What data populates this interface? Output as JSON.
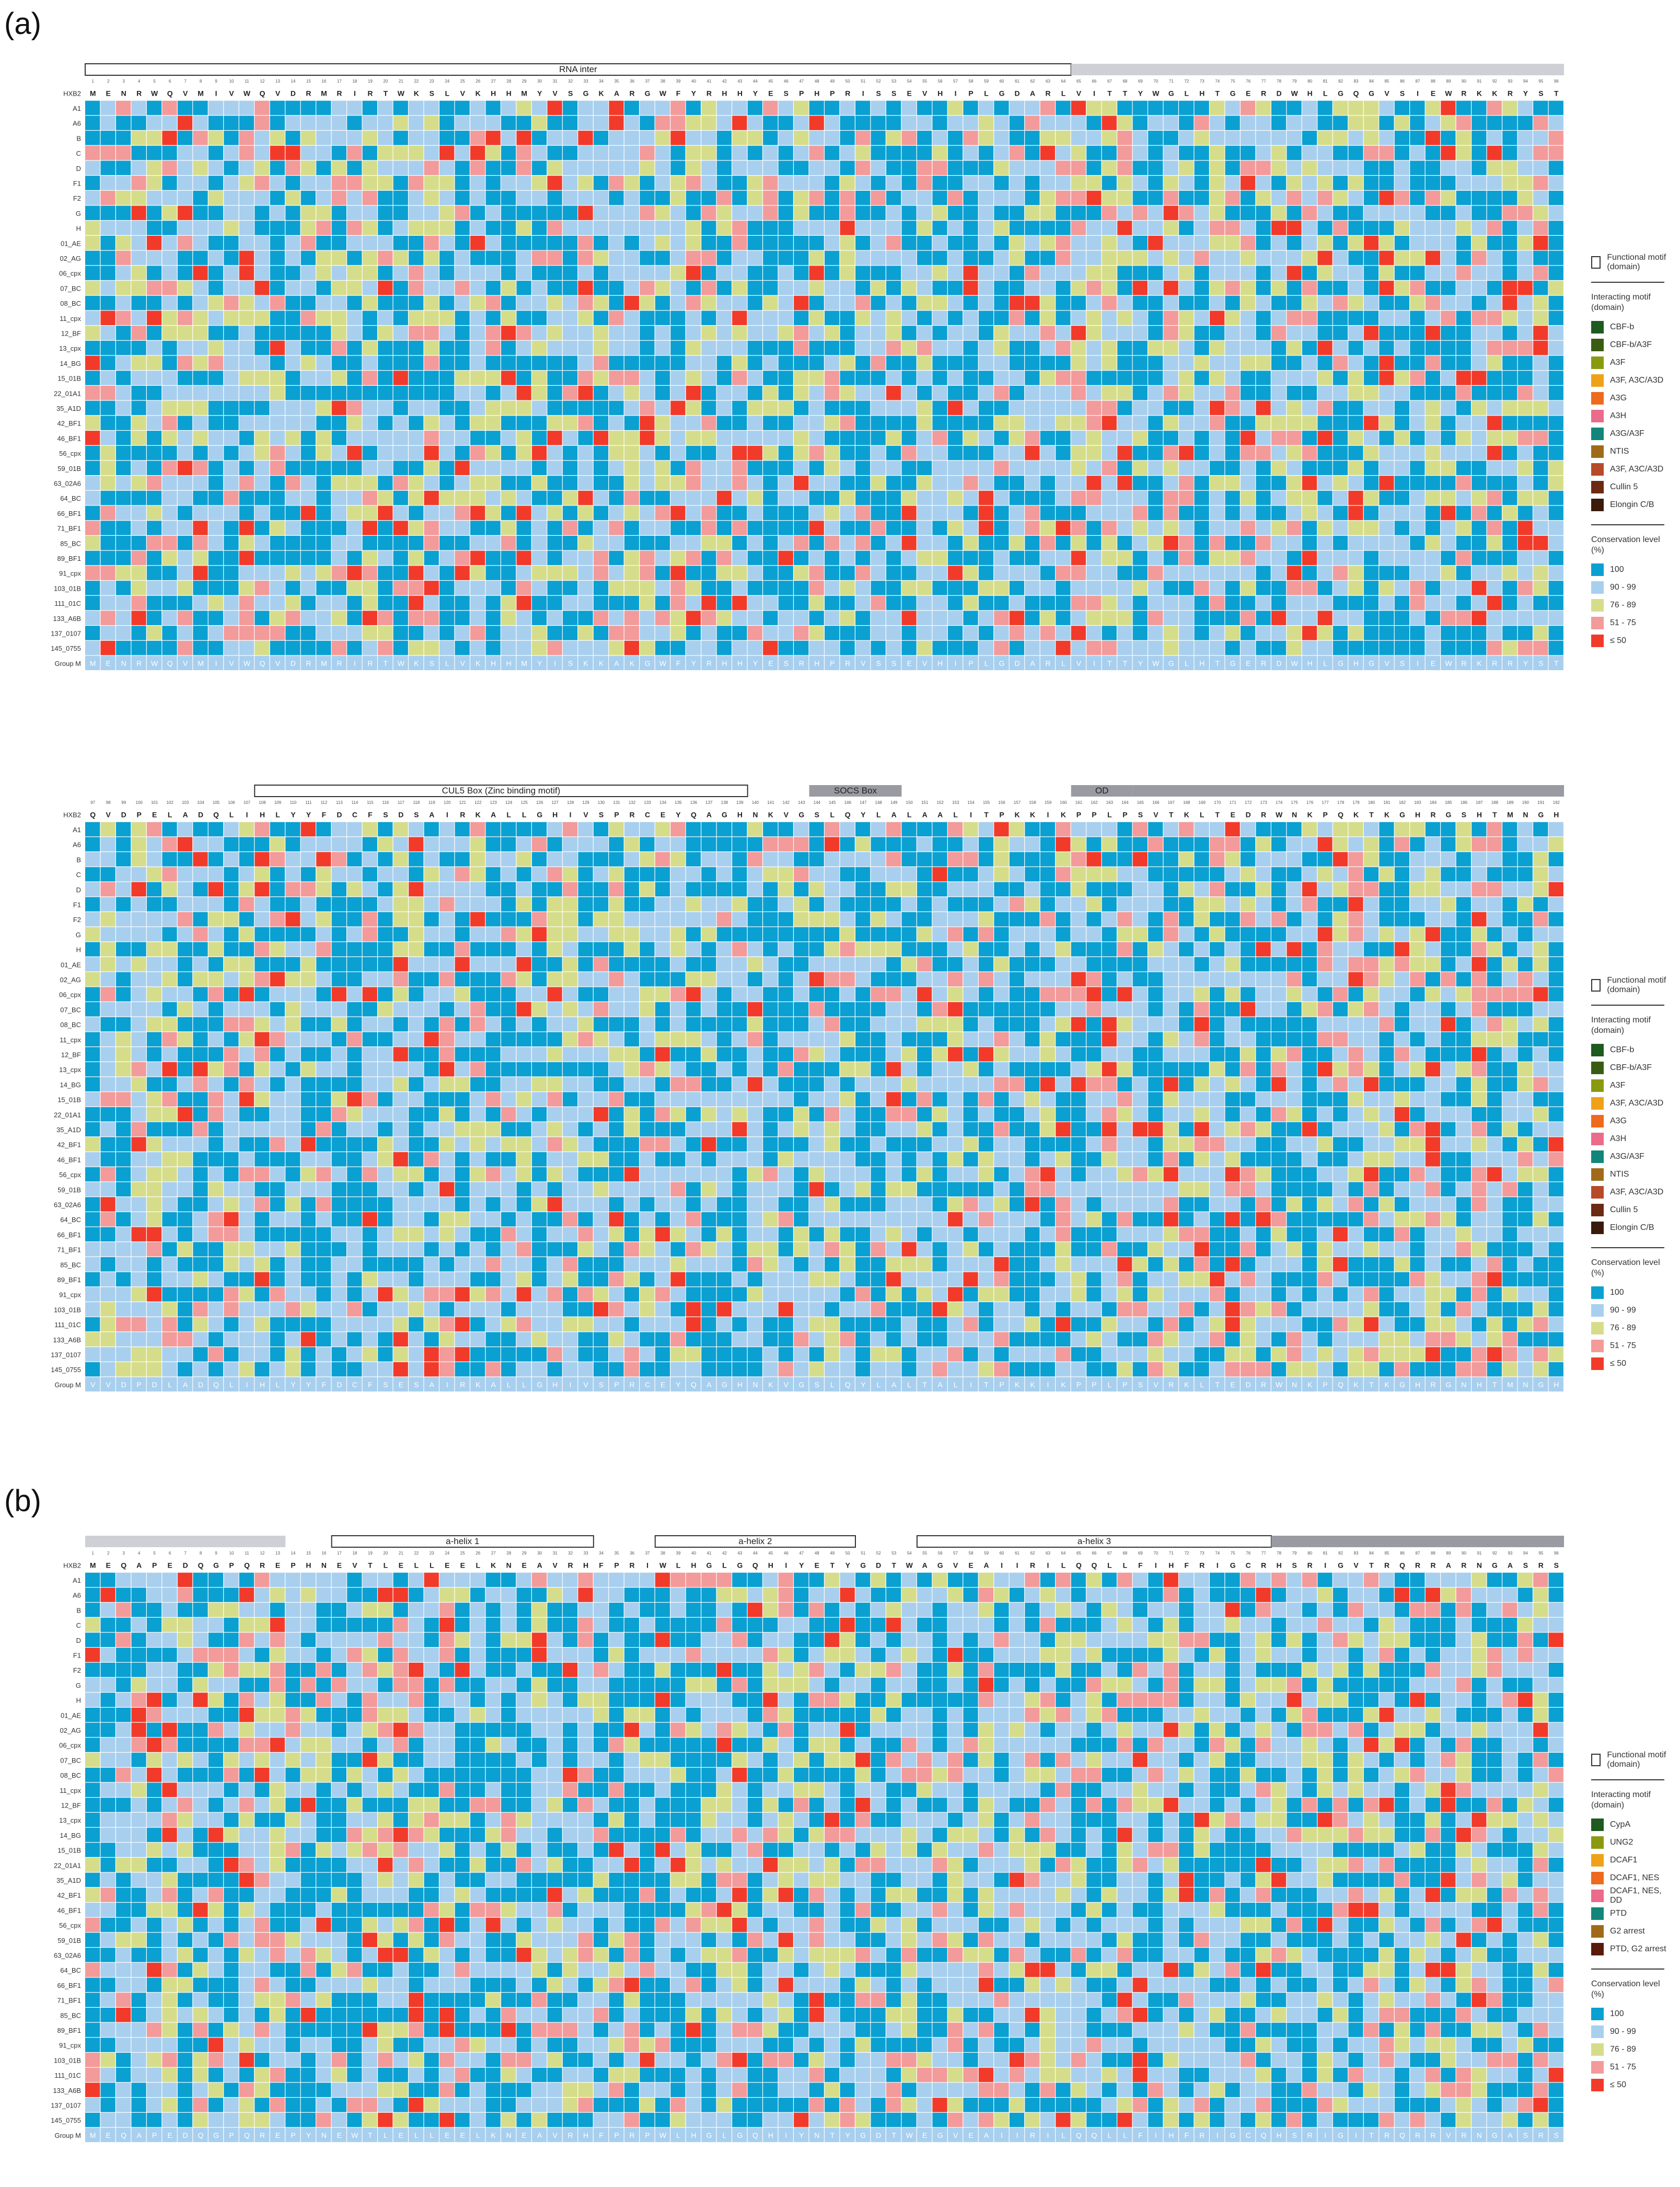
{
  "panels": [
    {
      "label": "(a)"
    },
    {
      "label": "(b)"
    }
  ],
  "colors": {
    "c100": "#0aa0d2",
    "c90": "#a8cfee",
    "c76": "#d6dd8a",
    "c51": "#f39a9a",
    "c50": "#f23a2a",
    "header_bar": "#cfcfd6",
    "header_bar_dark": "#9a9ba2"
  },
  "rows": [
    "HXB2",
    "A1",
    "A6",
    "B",
    "C",
    "D",
    "F1",
    "F2",
    "G",
    "H",
    "01_AE",
    "02_AG",
    "06_cpx",
    "07_BC",
    "08_BC",
    "11_cpx",
    "12_BF",
    "13_cpx",
    "14_BG",
    "15_01B",
    "22_01A1",
    "35_A1D",
    "42_BF1",
    "46_BF1",
    "56_cpx",
    "59_01B",
    "63_02A6",
    "64_BC",
    "66_BF1",
    "71_BF1",
    "85_BC",
    "89_BF1",
    "91_cpx",
    "103_01B",
    "111_01C",
    "133_A6B",
    "137_0107",
    "145_0755",
    "Group M"
  ],
  "heatmaps": [
    {
      "id": "vif1",
      "start_num": 1,
      "hxb2": "MENRWQVMIVWQVDRMRIRTWKSLVKHHMYVSGKARGWFYRHHYESPHPRISSEVHIPLGDARLVITTYWGLHTGERDWHLGQGVSIEWRKKRYST",
      "group_m": "MENRWQVMIVWQVDRMRIRTWKSLVKHHMYISKKAKGWFYRHHYESRHPRVSSEVHIPLGDARLVITTYWGLHTGERDWHLGHGVSIEWRKRRYST",
      "regions": [
        {
          "name": "RNA inter",
          "start": 1,
          "end": 64,
          "style": "box"
        },
        {
          "name": "",
          "start": 65,
          "end": 96,
          "style": "light"
        }
      ]
    },
    {
      "id": "vif2",
      "start_num": 97,
      "hxb2": "QVDPELADQLIHLYYFDCFSDSAIRKALLGHIVSPRCEYQAGHNKVGSLQYLALAALITPKKIKPPLPSVTKLTEDRWNKPQKTKGHRGSHTMNGH",
      "group_m": "VVDPDLADQLIHLYYFDCFSESAIRKALLGHIVSPRCEYQAGHNKVGSLQYLALTALITPKKIKPPLPSVRKLTEDRWNKPQKTKGHRGNHTMNGH",
      "regions": [
        {
          "name": "CUL5 Box (Zinc binding motif)",
          "start": 108,
          "end": 139,
          "style": "box"
        },
        {
          "name": "SOCS Box",
          "start": 144,
          "end": 149,
          "style": "dark"
        },
        {
          "name": "OD",
          "start": 161,
          "end": 164,
          "style": "dark"
        },
        {
          "name": "",
          "start": 165,
          "end": 192,
          "style": "dark"
        }
      ]
    },
    {
      "id": "vpr",
      "start_num": 1,
      "hxb2": "MEQAPEDQGPQREPHNEVTLELLEELKNEAVRHFPRIWLHGLGQHIYETYGDTWAGVEAIIRILQQLLFIHFRIGCRHSRIGVTRQRRARNGASRS",
      "group_m": "MEQAPEDQGPQREPYNEWTLELLEELKNEAVRHFPRPWLHGLGQHIYNTYGDTWEGVEAIIRILQQLLFIHFRIGCQHSRIGITRQRRVRNGASRS",
      "regions": [
        {
          "name": "",
          "start": 1,
          "end": 13,
          "style": "light"
        },
        {
          "name": "a-helix 1",
          "start": 17,
          "end": 33,
          "style": "box"
        },
        {
          "name": "a-helix 2",
          "start": 38,
          "end": 50,
          "style": "box"
        },
        {
          "name": "a-helix 3",
          "start": 55,
          "end": 77,
          "style": "box"
        },
        {
          "name": "",
          "start": 78,
          "end": 96,
          "style": "dark"
        }
      ]
    }
  ],
  "legends": [
    {
      "functional_label": "Functional motif (domain)",
      "interacting_title": "Interacting motif (domain)",
      "items": [
        {
          "color": "#1f5a1f",
          "label": "CBF-b"
        },
        {
          "color": "#3a5c12",
          "label": "CBF-b/A3F"
        },
        {
          "color": "#8a9a10",
          "label": "A3F"
        },
        {
          "color": "#f0a11a",
          "label": "A3F, A3C/A3D"
        },
        {
          "color": "#ee6a1e",
          "label": "A3G"
        },
        {
          "color": "#ea6b8a",
          "label": "A3H"
        },
        {
          "color": "#13857a",
          "label": "A3G/A3F"
        },
        {
          "color": "#a06a1a",
          "label": "NTIS"
        },
        {
          "color": "#b84a2a",
          "label": "A3F, A3C/A3D"
        },
        {
          "color": "#6b2a12",
          "label": "Cullin 5"
        },
        {
          "color": "#3a1a0a",
          "label": "Elongin C/B"
        }
      ]
    },
    {
      "functional_label": "Functional motif (domain)",
      "interacting_title": "Interacting motif (domain)",
      "items": [
        {
          "color": "#1f5a1f",
          "label": "CBF-b"
        },
        {
          "color": "#3a5c12",
          "label": "CBF-b/A3F"
        },
        {
          "color": "#8a9a10",
          "label": "A3F"
        },
        {
          "color": "#f0a11a",
          "label": "A3F, A3C/A3D"
        },
        {
          "color": "#ee6a1e",
          "label": "A3G"
        },
        {
          "color": "#ea6b8a",
          "label": "A3H"
        },
        {
          "color": "#13857a",
          "label": "A3G/A3F"
        },
        {
          "color": "#a06a1a",
          "label": "NTIS"
        },
        {
          "color": "#b84a2a",
          "label": "A3F, A3C/A3D"
        },
        {
          "color": "#6b2a12",
          "label": "Cullin 5"
        },
        {
          "color": "#3a1a0a",
          "label": "Elongin C/B"
        }
      ]
    },
    {
      "functional_label": "Functional motif (domain)",
      "interacting_title": "Interacting motif (domain)",
      "items": [
        {
          "color": "#1f5a1f",
          "label": "CypA"
        },
        {
          "color": "#8a9a10",
          "label": "UNG2"
        },
        {
          "color": "#f0a11a",
          "label": "DCAF1"
        },
        {
          "color": "#ee6a1e",
          "label": "DCAF1, NES"
        },
        {
          "color": "#ea6b8a",
          "label": "DCAF1, NES, DD"
        },
        {
          "color": "#13857a",
          "label": "PTD"
        },
        {
          "color": "#a06a1a",
          "label": "G2 arrest"
        },
        {
          "color": "#5a1a0a",
          "label": "PTD, G2 arrest"
        }
      ]
    }
  ],
  "conservation": {
    "title": "Conservation level (%)",
    "levels": [
      {
        "label": "100",
        "color": "#0aa0d2"
      },
      {
        "label": "90 - 99",
        "color": "#a8cfee"
      },
      {
        "label": "76 - 89",
        "color": "#d6dd8a"
      },
      {
        "label": "51 - 75",
        "color": "#f39a9a"
      },
      {
        "label": "≤ 50",
        "color": "#f23a2a"
      }
    ]
  }
}
